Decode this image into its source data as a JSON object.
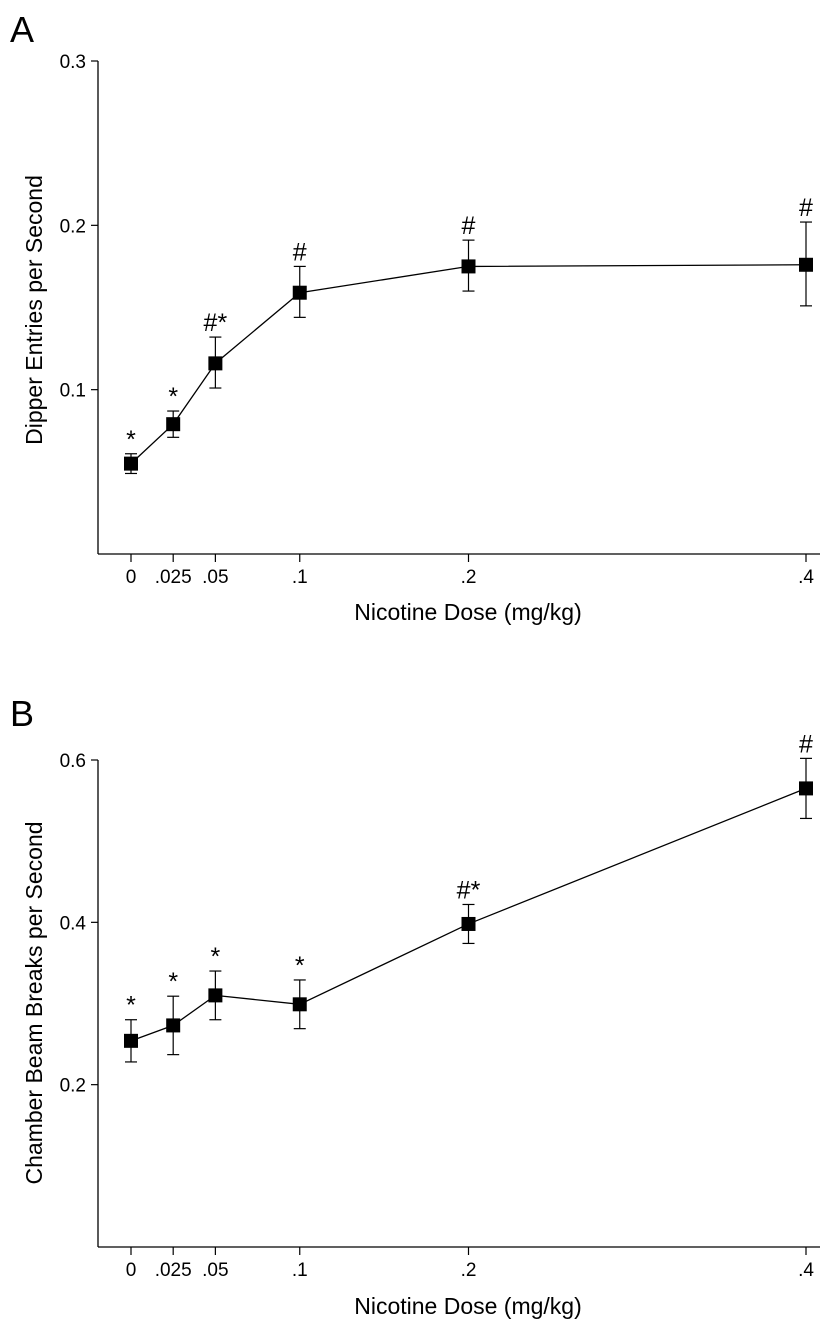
{
  "chart_data": [
    {
      "panel": "A",
      "type": "line",
      "xlabel": "Nicotine Dose (mg/kg)",
      "ylabel": "Dipper Entries per Second",
      "x": [
        0,
        0.025,
        0.05,
        0.1,
        0.2,
        0.4
      ],
      "x_tick_labels": [
        "0",
        ".025",
        ".05",
        ".1",
        ".2",
        ".4"
      ],
      "xlim": [
        -0.02,
        0.408
      ],
      "ylim": [
        0,
        0.3
      ],
      "y_ticks": [
        0.1,
        0.2,
        0.3
      ],
      "y_tick_labels": [
        "0.1",
        "0.2",
        "0.3"
      ],
      "series": [
        {
          "values": [
            0.055,
            0.079,
            0.116,
            0.159,
            0.175,
            0.176
          ],
          "error_low": [
            0.049,
            0.071,
            0.101,
            0.144,
            0.16,
            0.151
          ],
          "error_high": [
            0.061,
            0.087,
            0.132,
            0.175,
            0.191,
            0.202
          ],
          "annotations": [
            "*",
            "*",
            "#*",
            "#",
            "#",
            "#"
          ]
        }
      ]
    },
    {
      "panel": "B",
      "type": "line",
      "xlabel": "Nicotine Dose (mg/kg)",
      "ylabel": "Chamber Beam Breaks per Second",
      "x": [
        0,
        0.025,
        0.05,
        0.1,
        0.2,
        0.4
      ],
      "x_tick_labels": [
        "0",
        ".025",
        ".05",
        ".1",
        ".2",
        ".4"
      ],
      "xlim": [
        -0.02,
        0.408
      ],
      "ylim": [
        0,
        0.6
      ],
      "y_ticks": [
        0.2,
        0.4,
        0.6
      ],
      "y_tick_labels": [
        "0.2",
        "0.4",
        "0.6"
      ],
      "series": [
        {
          "values": [
            0.254,
            0.273,
            0.31,
            0.299,
            0.398,
            0.565
          ],
          "error_low": [
            0.228,
            0.237,
            0.28,
            0.269,
            0.374,
            0.528
          ],
          "error_high": [
            0.28,
            0.309,
            0.34,
            0.329,
            0.422,
            0.602
          ],
          "annotations": [
            "*",
            "*",
            "*",
            "*",
            "#*",
            "#"
          ]
        }
      ]
    }
  ]
}
